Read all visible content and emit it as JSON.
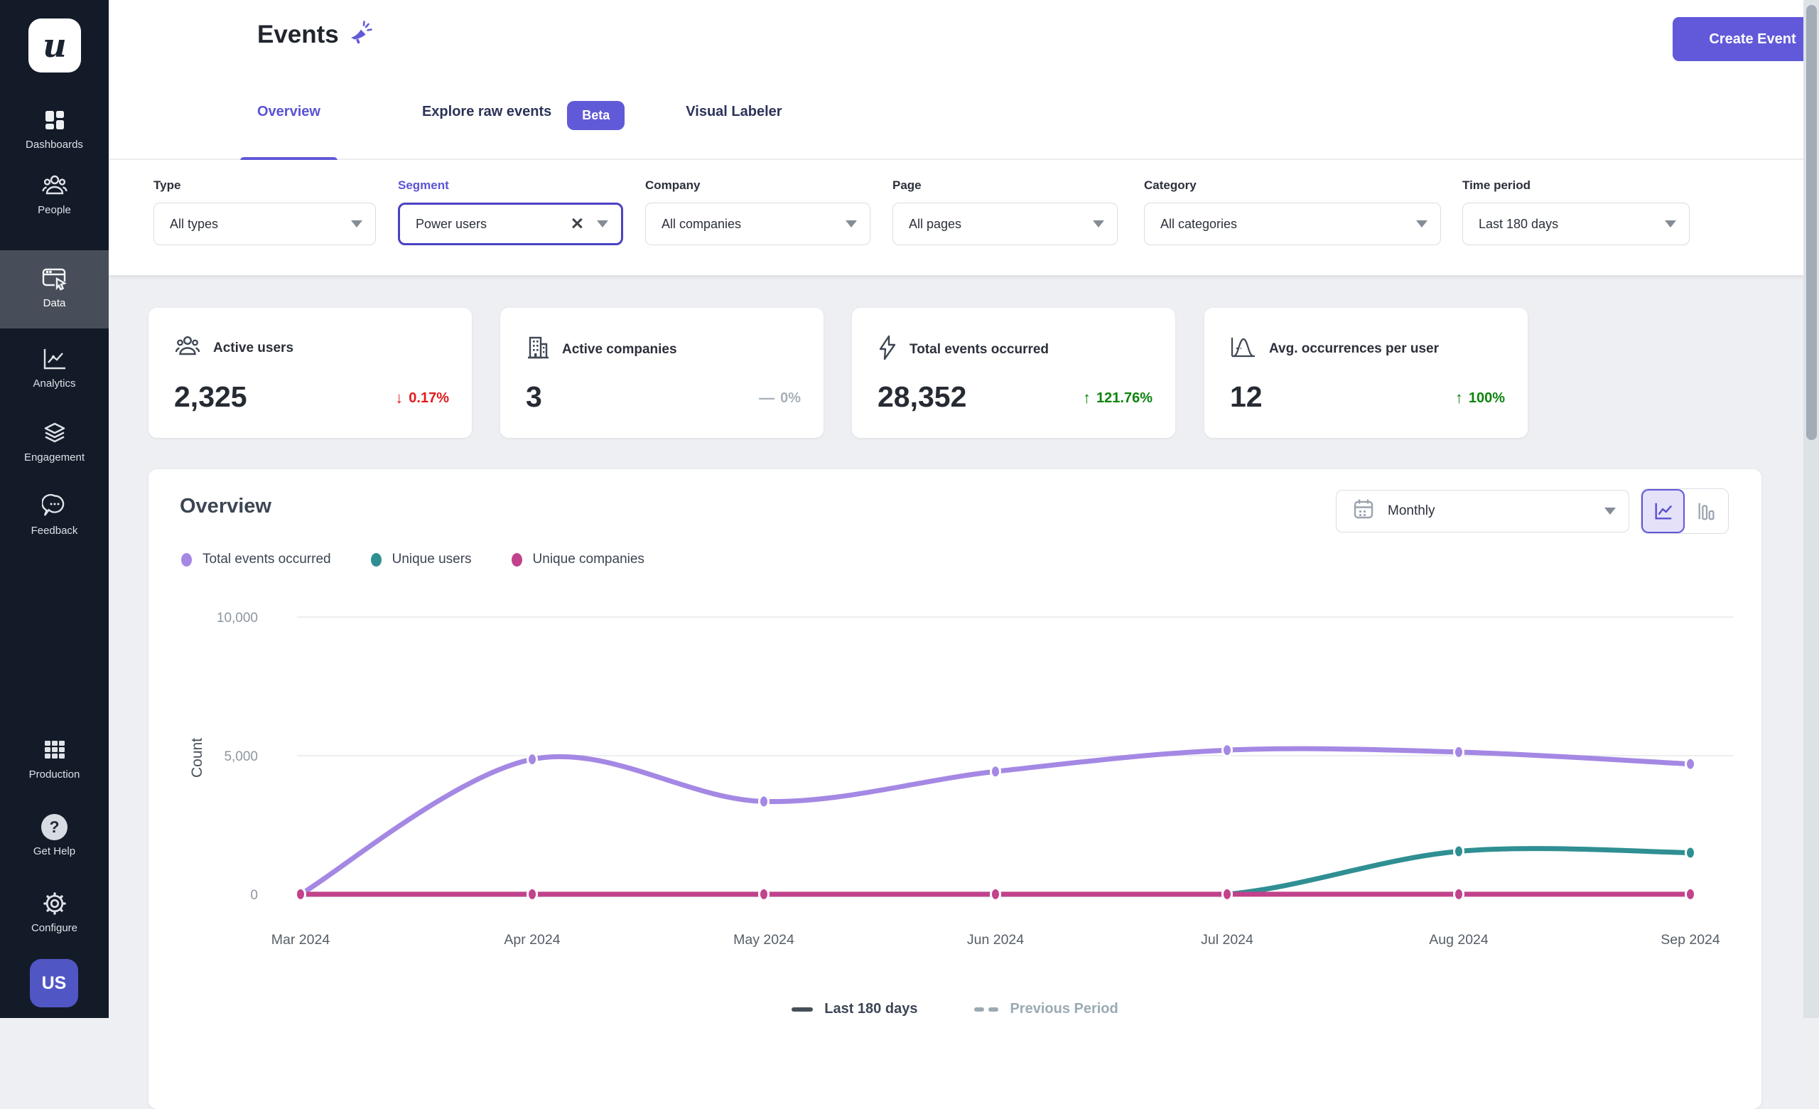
{
  "icons": {
    "clear": "✕",
    "help": "?"
  },
  "colors": {
    "accent": "#6159d9",
    "sidebar_bg": "#131b28",
    "sidebar_active_bg": "#474e59",
    "chart_purple": "#a488e4",
    "chart_teal": "#2f8f92",
    "chart_pink": "#c2428c",
    "delta_down": "#e11b1b",
    "delta_up": "#0e840e",
    "delta_flat": "#a8b0b9"
  },
  "sidebar": {
    "logo_text": "u",
    "avatar_text": "US",
    "items": [
      {
        "label": "Dashboards",
        "icon": "dashboards-icon"
      },
      {
        "label": "People",
        "icon": "people-icon"
      },
      {
        "label": "Data",
        "icon": "data-icon",
        "active": true
      },
      {
        "label": "Analytics",
        "icon": "analytics-icon"
      },
      {
        "label": "Engagement",
        "icon": "engagement-icon"
      },
      {
        "label": "Feedback",
        "icon": "feedback-icon"
      }
    ],
    "bottom_items": [
      {
        "label": "Production",
        "icon": "production-icon"
      },
      {
        "label": "Get Help",
        "icon": "help-icon"
      },
      {
        "label": "Configure",
        "icon": "gear-icon"
      }
    ]
  },
  "header": {
    "title": "Events",
    "create_event_label": "Create Event"
  },
  "tabs": [
    {
      "label": "Overview",
      "active": true
    },
    {
      "label": "Explore raw events",
      "badge": "Beta"
    },
    {
      "label": "Visual Labeler"
    }
  ],
  "filters": [
    {
      "label": "Type",
      "value": "All types"
    },
    {
      "label": "Segment",
      "value": "Power users",
      "highlighted": true,
      "clearable": true
    },
    {
      "label": "Company",
      "value": "All companies"
    },
    {
      "label": "Page",
      "value": "All pages"
    },
    {
      "label": "Category",
      "value": "All categories"
    },
    {
      "label": "Time period",
      "value": "Last 180 days"
    }
  ],
  "stats": [
    {
      "icon": "users-icon",
      "label": "Active users",
      "value": "2,325",
      "arrow": "↓",
      "delta": "0.17%",
      "trend": "down"
    },
    {
      "icon": "building-icon",
      "label": "Active companies",
      "value": "3",
      "arrow": "—",
      "delta": "0%",
      "trend": "flat"
    },
    {
      "icon": "bolt-icon",
      "label": "Total events occurred",
      "value": "28,352",
      "arrow": "↑",
      "delta": "121.76%",
      "trend": "up"
    },
    {
      "icon": "bell-curve-icon",
      "label": "Avg. occurrences per user",
      "value": "12",
      "arrow": "↑",
      "delta": "100%",
      "trend": "up"
    }
  ],
  "overview": {
    "title": "Overview",
    "granularity": "Monthly",
    "bottom_legend": [
      {
        "label": "Last 180 days",
        "style": "solid"
      },
      {
        "label": "Previous Period",
        "style": "dashed"
      }
    ]
  },
  "chart_data": {
    "type": "line",
    "x": [
      "Mar 2024",
      "Apr 2024",
      "May 2024",
      "Jun 2024",
      "Jul 2024",
      "Aug 2024",
      "Sep 2024"
    ],
    "ylabel": "Count",
    "ylim": [
      0,
      10000
    ],
    "yticks": [
      0,
      5000,
      10000
    ],
    "grid": true,
    "legend_position": "top-left",
    "series": [
      {
        "name": "Total events occurred",
        "color": "#a488e4",
        "values": [
          0,
          4870,
          3350,
          4430,
          5200,
          5130,
          4700
        ]
      },
      {
        "name": "Unique users",
        "color": "#2f8f92",
        "values": [
          0,
          0,
          0,
          0,
          0,
          1550,
          1500
        ]
      },
      {
        "name": "Unique companies",
        "color": "#c2428c",
        "values": [
          3,
          3,
          3,
          3,
          3,
          3,
          3
        ]
      }
    ]
  }
}
